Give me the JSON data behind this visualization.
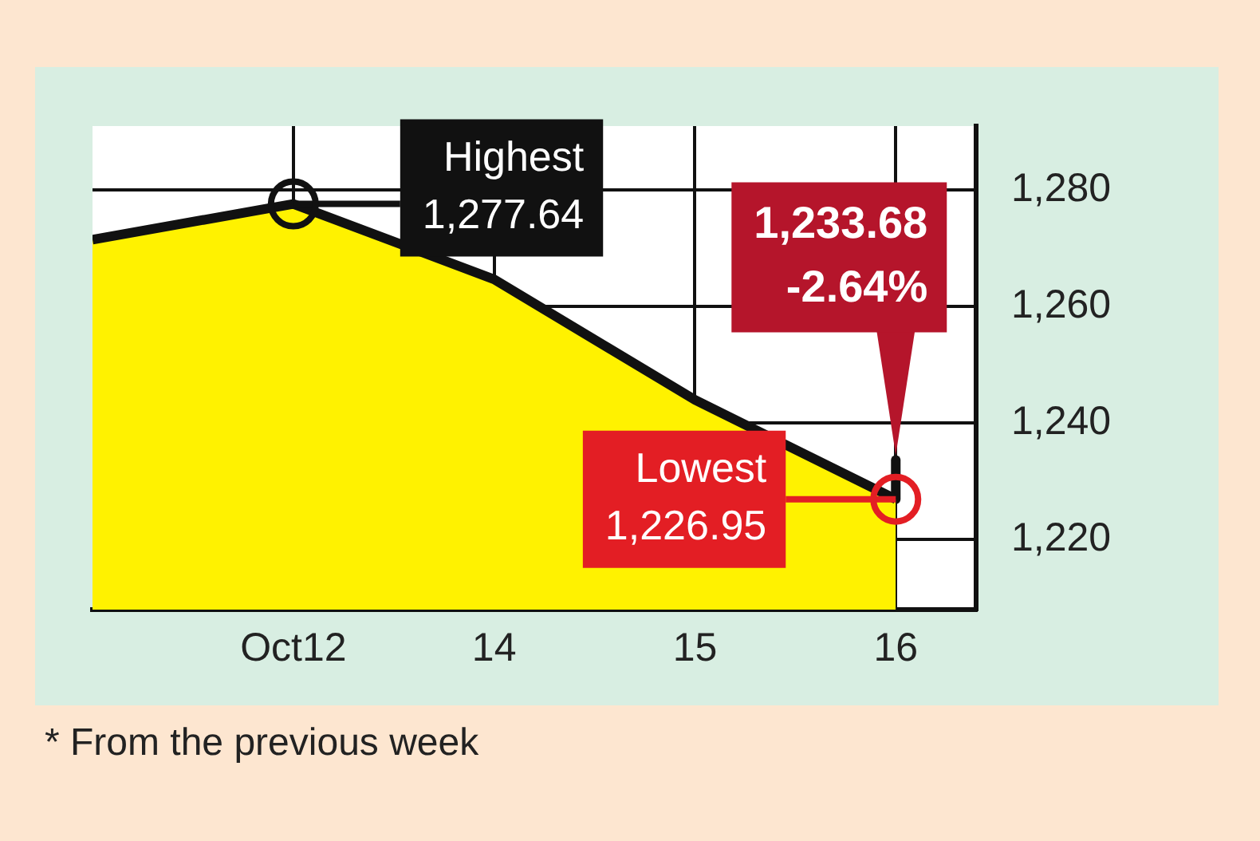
{
  "chart_data": {
    "type": "area",
    "categories": [
      null,
      "Oct12",
      "14",
      "15",
      "16"
    ],
    "series": [
      {
        "color": "#fff200",
        "values": [
          1271.5,
          1277.64,
          1264.7,
          1244,
          1226.95
        ]
      },
      {
        "type": "line",
        "color": "#111111",
        "x": [
          "16",
          "16"
        ],
        "values": [
          1226.95,
          1233.68
        ]
      }
    ],
    "ylim": [
      1208,
      1291
    ],
    "yticks": [
      {
        "value": 1220,
        "label": "1,220"
      },
      {
        "value": 1240,
        "label": "1,240"
      },
      {
        "value": 1260,
        "label": "1,260"
      },
      {
        "value": 1280,
        "label": "1,280"
      }
    ],
    "grid": true,
    "line_style": "solid",
    "annotations": [
      {
        "text": "Highest\n1,277.64",
        "x": "Oct12",
        "y": 1277.64
      },
      {
        "text": "Lowest\n1,226.95",
        "x": "16",
        "y": 1226.95
      },
      {
        "text": "1,233.68\n-2.64%",
        "x": "16",
        "y": 1233.68
      },
      "* From the previous week"
    ]
  }
}
